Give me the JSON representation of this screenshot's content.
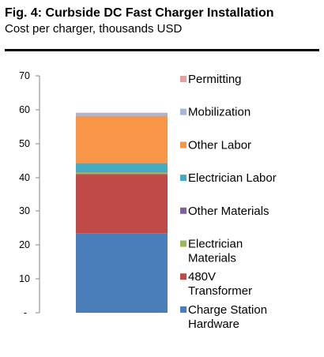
{
  "chart_data": {
    "type": "bar",
    "stacked": true,
    "title": "Fig. 4: Curbside DC Fast Charger Installation",
    "subtitle": "Cost per charger, thousands USD",
    "xlabel": "",
    "ylabel": "",
    "ylim": [
      0,
      70
    ],
    "y_ticks": [
      "-",
      "10",
      "20",
      "30",
      "40",
      "50",
      "60",
      "70"
    ],
    "categories": [
      ""
    ],
    "grid": false,
    "legend_position": "right",
    "series": [
      {
        "name": "Charge Station Hardware",
        "values": [
          23.5
        ],
        "color": "#4a7ebb",
        "legend_lines": [
          "Charge Station",
          "Hardware"
        ]
      },
      {
        "name": "480V Transformer",
        "values": [
          17.5
        ],
        "color": "#be4b48",
        "legend_lines": [
          "480V",
          "Transformer"
        ]
      },
      {
        "name": "Electrician Materials",
        "values": [
          0.5
        ],
        "color": "#98b954",
        "legend_lines": [
          "Electrician",
          "Materials"
        ]
      },
      {
        "name": "Other Materials",
        "values": [
          0.2
        ],
        "color": "#7d60a0",
        "legend_lines": [
          "Other Materials"
        ]
      },
      {
        "name": "Electrician Labor",
        "values": [
          2.5
        ],
        "color": "#46aac5",
        "legend_lines": [
          "Electrician Labor"
        ]
      },
      {
        "name": "Other Labor",
        "values": [
          14.0
        ],
        "color": "#f79646",
        "legend_lines": [
          "Other Labor"
        ]
      },
      {
        "name": "Mobilization",
        "values": [
          0.8
        ],
        "color": "#a5b6dc",
        "legend_lines": [
          "Mobilization"
        ]
      },
      {
        "name": "Permitting",
        "values": [
          0.1
        ],
        "color": "#e6a0a0",
        "legend_lines": [
          "Permitting"
        ]
      }
    ]
  }
}
